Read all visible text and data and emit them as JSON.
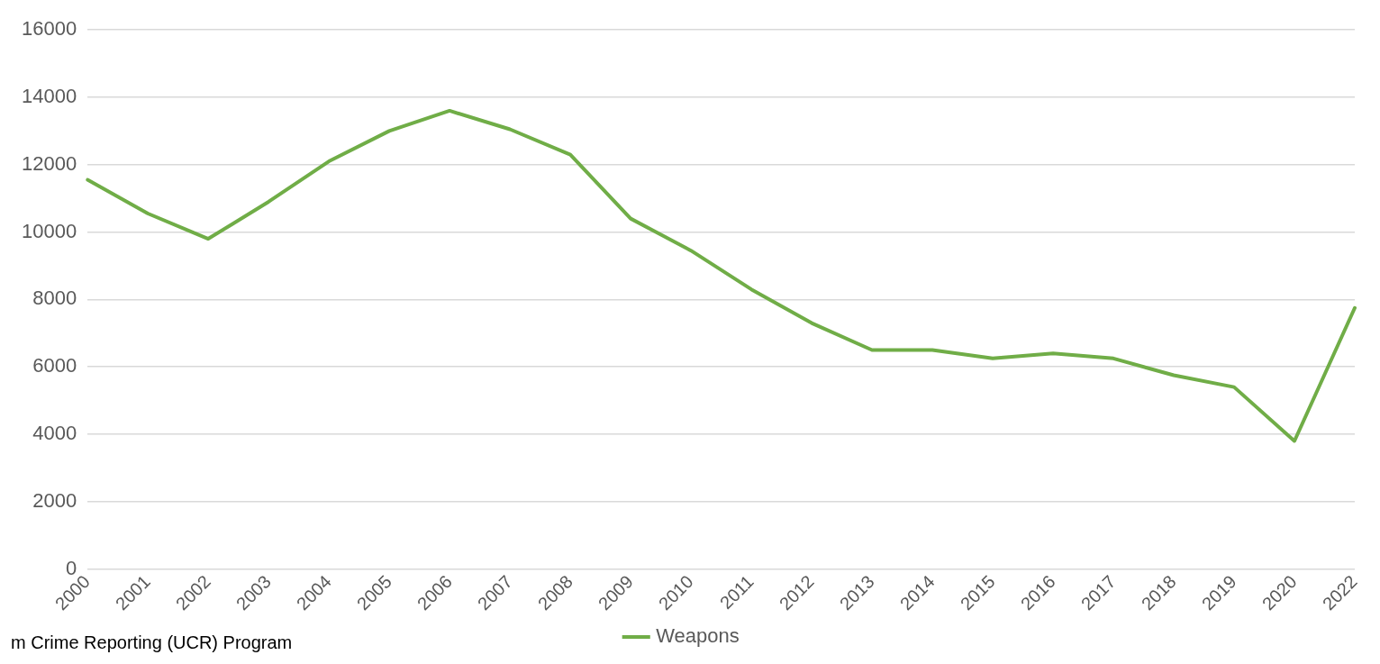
{
  "chart_data": {
    "type": "line",
    "categories": [
      "2000",
      "2001",
      "2002",
      "2003",
      "2004",
      "2005",
      "2006",
      "2007",
      "2008",
      "2009",
      "2010",
      "2011",
      "2012",
      "2013",
      "2014",
      "2015",
      "2016",
      "2017",
      "2018",
      "2019",
      "2020",
      "2022"
    ],
    "series": [
      {
        "name": "Weapons",
        "color": "#70ad47",
        "values": [
          11550,
          10550,
          9800,
          10900,
          12100,
          13000,
          13600,
          13050,
          12300,
          10400,
          9450,
          8300,
          7300,
          6500,
          6500,
          6250,
          6400,
          6250,
          5750,
          5400,
          3800,
          7750
        ]
      }
    ],
    "ylim": [
      0,
      16000
    ],
    "yticks": [
      0,
      2000,
      4000,
      6000,
      8000,
      10000,
      12000,
      14000,
      16000
    ],
    "grid": "y",
    "legend": "bottom",
    "marker": "none",
    "line_style": "solid",
    "annotations": [
      "m Crime Reporting (UCR) Program"
    ]
  }
}
